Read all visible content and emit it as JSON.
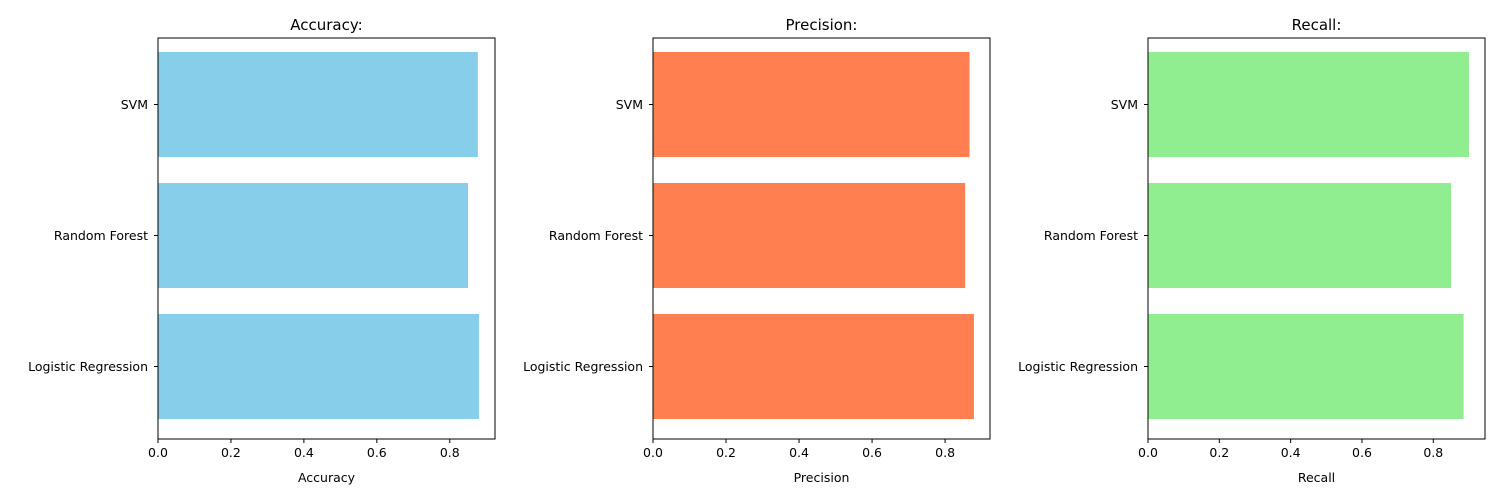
{
  "chart_data": [
    {
      "type": "bar",
      "orientation": "horizontal",
      "title": "Accuracy:",
      "xlabel": "Accuracy",
      "ylabel": "",
      "categories": [
        "Logistic Regression",
        "Random Forest",
        "SVM"
      ],
      "values": [
        0.88,
        0.85,
        0.877
      ],
      "color": "#87ceeb",
      "xlim": [
        0,
        0.924
      ],
      "xticks": [
        "0.0",
        "0.2",
        "0.4",
        "0.6",
        "0.8"
      ],
      "grid": false
    },
    {
      "type": "bar",
      "orientation": "horizontal",
      "title": "Precision:",
      "xlabel": "Precision",
      "ylabel": "",
      "categories": [
        "Logistic Regression",
        "Random Forest",
        "SVM"
      ],
      "values": [
        0.879,
        0.855,
        0.867
      ],
      "color": "#ff7f50",
      "xlim": [
        0,
        0.923
      ],
      "xticks": [
        "0.0",
        "0.2",
        "0.4",
        "0.6",
        "0.8"
      ],
      "grid": false
    },
    {
      "type": "bar",
      "orientation": "horizontal",
      "title": "Recall:",
      "xlabel": "Recall",
      "ylabel": "",
      "categories": [
        "Logistic Regression",
        "Random Forest",
        "SVM"
      ],
      "values": [
        0.885,
        0.85,
        0.9
      ],
      "color": "#90ee90",
      "xlim": [
        0,
        0.945
      ],
      "xticks": [
        "0.0",
        "0.2",
        "0.4",
        "0.6",
        "0.8"
      ],
      "grid": false
    }
  ]
}
